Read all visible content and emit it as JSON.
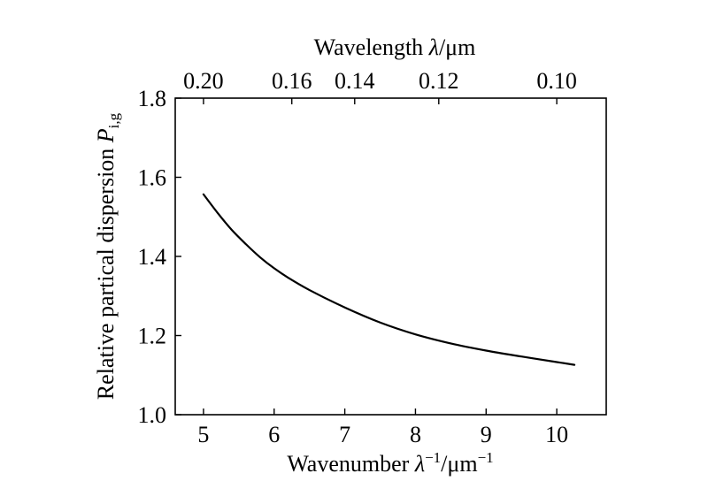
{
  "chart_data": {
    "type": "line",
    "title": "",
    "xlabel": {
      "prefix": "Wavenumber ",
      "lambda": "λ",
      "sup1": "−1",
      "unit": "/μm",
      "sup2": "−1"
    },
    "top_xlabel": {
      "prefix": "Wavelength ",
      "lambda": "λ",
      "unit": "/μm"
    },
    "ylabel": {
      "prefix": "Relative partical dispersion ",
      "symbol": "P",
      "subscript": "i,g"
    },
    "xlim": [
      4.6,
      10.7
    ],
    "ylim": [
      1.0,
      1.8
    ],
    "x_ticks": [
      5,
      6,
      7,
      8,
      9,
      10
    ],
    "x_tick_labels": [
      "5",
      "6",
      "7",
      "8",
      "9",
      "10"
    ],
    "y_ticks": [
      1.0,
      1.2,
      1.4,
      1.6,
      1.8
    ],
    "y_tick_labels": [
      "1.0",
      "1.2",
      "1.4",
      "1.6",
      "1.8"
    ],
    "top_ticks": [
      {
        "label": "0.20",
        "wavenumber": 5.0
      },
      {
        "label": "0.16",
        "wavenumber": 6.25
      },
      {
        "label": "0.14",
        "wavenumber": 7.14
      },
      {
        "label": "0.12",
        "wavenumber": 8.33
      },
      {
        "label": "0.10",
        "wavenumber": 10.0
      }
    ],
    "series": [
      {
        "name": "P_i,g",
        "x": [
          5.0,
          5.2,
          5.4,
          5.6,
          5.8,
          6.0,
          6.2,
          6.5,
          7.0,
          7.5,
          8.0,
          8.5,
          9.0,
          9.5,
          10.0,
          10.25
        ],
        "y": [
          1.557,
          1.51,
          1.467,
          1.431,
          1.398,
          1.37,
          1.346,
          1.315,
          1.271,
          1.233,
          1.203,
          1.18,
          1.162,
          1.147,
          1.133,
          1.126
        ]
      }
    ]
  },
  "colors": {
    "line": "#000000",
    "axis": "#000000",
    "background": "#ffffff"
  }
}
